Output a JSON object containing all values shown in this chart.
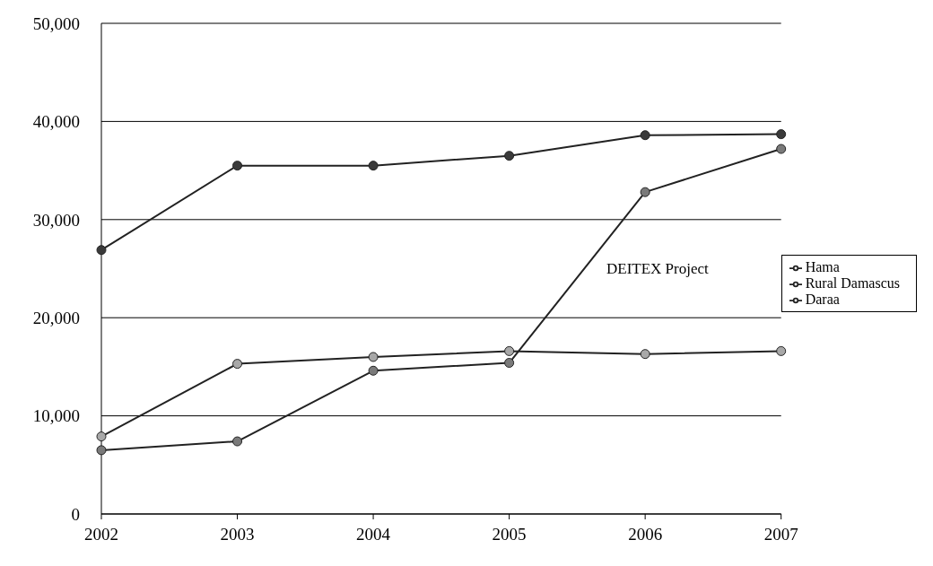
{
  "chart_data": {
    "type": "line",
    "categories": [
      "2002",
      "2003",
      "2004",
      "2005",
      "2006",
      "2007"
    ],
    "series": [
      {
        "name": "Hama",
        "color": "#3a3a3a",
        "values": [
          26900,
          35500,
          35500,
          36500,
          38600,
          38700
        ]
      },
      {
        "name": "Rural Damascus",
        "color": "#7a7a7a",
        "values": [
          6500,
          7400,
          14600,
          15400,
          32800,
          37200
        ]
      },
      {
        "name": "Daraa",
        "color": "#a8a8a8",
        "values": [
          7900,
          15300,
          16000,
          16600,
          16300,
          16600
        ]
      }
    ],
    "ylim": [
      0,
      50000
    ],
    "yticks": [
      {
        "value": 0,
        "label": "0"
      },
      {
        "value": 10000,
        "label": "10,000"
      },
      {
        "value": 20000,
        "label": "20,000"
      },
      {
        "value": 30000,
        "label": "30,000"
      },
      {
        "value": 40000,
        "label": "40,000"
      },
      {
        "value": 50000,
        "label": "50,000"
      }
    ],
    "grid": "y",
    "legend": "right",
    "marker": "circle",
    "line_style": "solid",
    "annotations": [
      "DEITEX Project"
    ]
  }
}
